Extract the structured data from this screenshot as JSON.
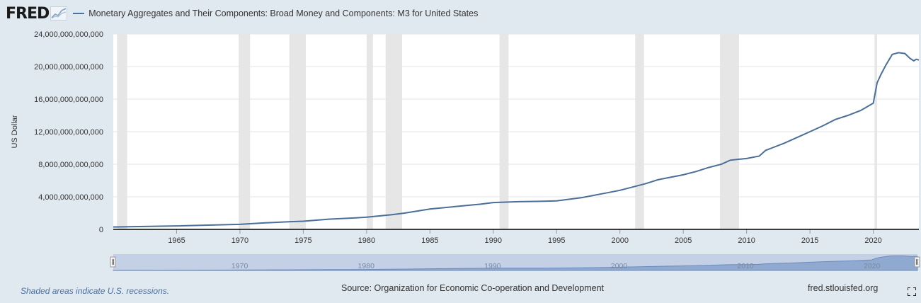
{
  "header": {
    "logo": "FRED",
    "logo_icon": "fred-graph-icon",
    "title": "Monetary Aggregates and Their Components: Broad Money and Components: M3 for United States"
  },
  "colors": {
    "line": "#4a6f98",
    "recession": "#e6e6e6",
    "navigator_fill": "#8fa9d0",
    "navigator_bg": "#c3d0e6",
    "background": "#e1e9f0"
  },
  "chart_data": {
    "type": "line",
    "title": "Monetary Aggregates and Their Components: Broad Money and Components: M3 for United States",
    "ylabel": "US Dollar",
    "xlabel": "",
    "xlim": [
      1960.0,
      2023.6
    ],
    "ylim": [
      0,
      24000000000000
    ],
    "y_ticks": [
      0,
      4000000000000,
      8000000000000,
      12000000000000,
      16000000000000,
      20000000000000,
      24000000000000
    ],
    "y_tick_labels": [
      "0",
      "4,000,000,000,000",
      "8,000,000,000,000",
      "12,000,000,000,000",
      "16,000,000,000,000",
      "20,000,000,000,000",
      "24,000,000,000,000"
    ],
    "x_ticks": [
      1965,
      1970,
      1975,
      1980,
      1985,
      1990,
      1995,
      2000,
      2005,
      2010,
      2015,
      2020
    ],
    "x_tick_labels": [
      "1965",
      "1970",
      "1975",
      "1980",
      "1985",
      "1990",
      "1995",
      "2000",
      "2005",
      "2010",
      "2015",
      "2020"
    ],
    "recessions": [
      [
        1960.3,
        1961.1
      ],
      [
        1969.9,
        1970.8
      ],
      [
        1973.9,
        1975.2
      ],
      [
        1980.0,
        1980.5
      ],
      [
        1981.5,
        1982.8
      ],
      [
        1990.5,
        1991.2
      ],
      [
        2001.2,
        2001.9
      ],
      [
        2007.9,
        2009.4
      ],
      [
        2020.1,
        2020.3
      ]
    ],
    "series": [
      {
        "name": "M3 for United States",
        "x": [
          1960,
          1965,
          1970,
          1972,
          1974,
          1975,
          1977,
          1979,
          1980,
          1982,
          1983,
          1985,
          1987,
          1989,
          1990,
          1992,
          1994,
          1995,
          1997,
          1999,
          2000,
          2001,
          2002,
          2003,
          2004,
          2005,
          2006,
          2007,
          2008,
          2008.7,
          2009.3,
          2010,
          2011,
          2011.5,
          2012,
          2013,
          2014,
          2015,
          2016,
          2017,
          2018,
          2019,
          2020.0,
          2020.3,
          2020.6,
          2021,
          2021.5,
          2022,
          2022.5,
          2022.9,
          2023.2,
          2023.4,
          2023.6
        ],
        "values": [
          300000000000,
          430000000000,
          620000000000,
          800000000000,
          950000000000,
          1000000000000,
          1250000000000,
          1400000000000,
          1500000000000,
          1800000000000,
          2000000000000,
          2500000000000,
          2800000000000,
          3100000000000,
          3300000000000,
          3400000000000,
          3450000000000,
          3500000000000,
          3900000000000,
          4500000000000,
          4800000000000,
          5200000000000,
          5600000000000,
          6100000000000,
          6400000000000,
          6700000000000,
          7100000000000,
          7600000000000,
          8000000000000,
          8500000000000,
          8600000000000,
          8700000000000,
          9000000000000,
          9700000000000,
          10000000000000,
          10600000000000,
          11300000000000,
          12000000000000,
          12700000000000,
          13500000000000,
          14000000000000,
          14600000000000,
          15500000000000,
          18000000000000,
          19000000000000,
          20200000000000,
          21500000000000,
          21700000000000,
          21600000000000,
          21000000000000,
          20700000000000,
          20900000000000,
          20800000000000
        ]
      }
    ],
    "navigator_ticks": [
      "1970",
      "1980",
      "1990",
      "2000",
      "2010",
      "2020"
    ]
  },
  "footer": {
    "note": "Shaded areas indicate U.S. recessions.",
    "source": "Source: Organization for Economic Co-operation and Development",
    "site": "fred.stlouisfed.org",
    "fullscreen_icon": "fullscreen-icon"
  }
}
